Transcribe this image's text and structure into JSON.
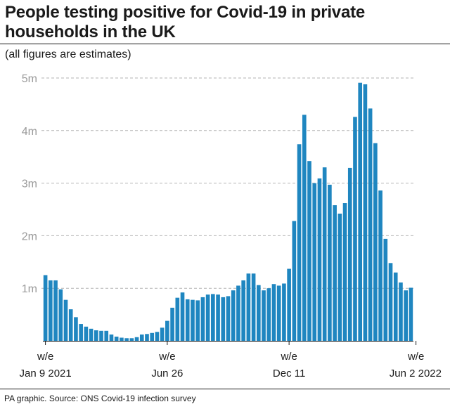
{
  "header": {
    "title_line1": "People testing positive for Covid-19 in private",
    "title_line2": "households in the UK",
    "subtitle": "(all figures are estimates)"
  },
  "footer": {
    "source": "PA graphic. Source: ONS Covid-19 infection survey"
  },
  "colors": {
    "bar": "#1f86c0",
    "grid": "#b3b3b3",
    "tick_label": "#9a9a9a",
    "text": "#1a1a1a"
  },
  "chart_data": {
    "type": "bar",
    "title": "People testing positive for Covid-19 in private households in the UK",
    "subtitle": "(all figures are estimates)",
    "xlabel": "",
    "ylabel": "",
    "ylim": [
      0,
      5000000
    ],
    "grid": true,
    "y_ticks": [
      {
        "value": 1000000,
        "label": "1m"
      },
      {
        "value": 2000000,
        "label": "2m"
      },
      {
        "value": 3000000,
        "label": "3m"
      },
      {
        "value": 4000000,
        "label": "4m"
      },
      {
        "value": 5000000,
        "label": "5m"
      }
    ],
    "x_ticks": [
      {
        "index": 0,
        "line1": "w/e",
        "line2": "Jan 9 2021"
      },
      {
        "index": 24,
        "line1": "w/e",
        "line2": "Jun 26"
      },
      {
        "index": 48,
        "line1": "w/e",
        "line2": "Dec 11"
      },
      {
        "index": 73,
        "line1": "w/e",
        "line2": "Jun 2 2022"
      }
    ],
    "series": [
      {
        "values": [
          1250000,
          1150000,
          1150000,
          980000,
          780000,
          600000,
          450000,
          320000,
          270000,
          230000,
          200000,
          190000,
          190000,
          120000,
          80000,
          60000,
          50000,
          50000,
          70000,
          120000,
          130000,
          150000,
          170000,
          250000,
          380000,
          630000,
          820000,
          920000,
          790000,
          780000,
          770000,
          830000,
          880000,
          890000,
          880000,
          830000,
          850000,
          960000,
          1050000,
          1150000,
          1280000,
          1280000,
          1060000,
          960000,
          1000000,
          1080000,
          1050000,
          1090000,
          1370000,
          2280000,
          3740000,
          4300000,
          3420000,
          3000000,
          3090000,
          3300000,
          2970000,
          2580000,
          2420000,
          2620000,
          3290000,
          4260000,
          4910000,
          4880000,
          4420000,
          3760000,
          2860000,
          1940000,
          1480000,
          1300000,
          1110000,
          960000,
          1010000
        ]
      }
    ]
  }
}
